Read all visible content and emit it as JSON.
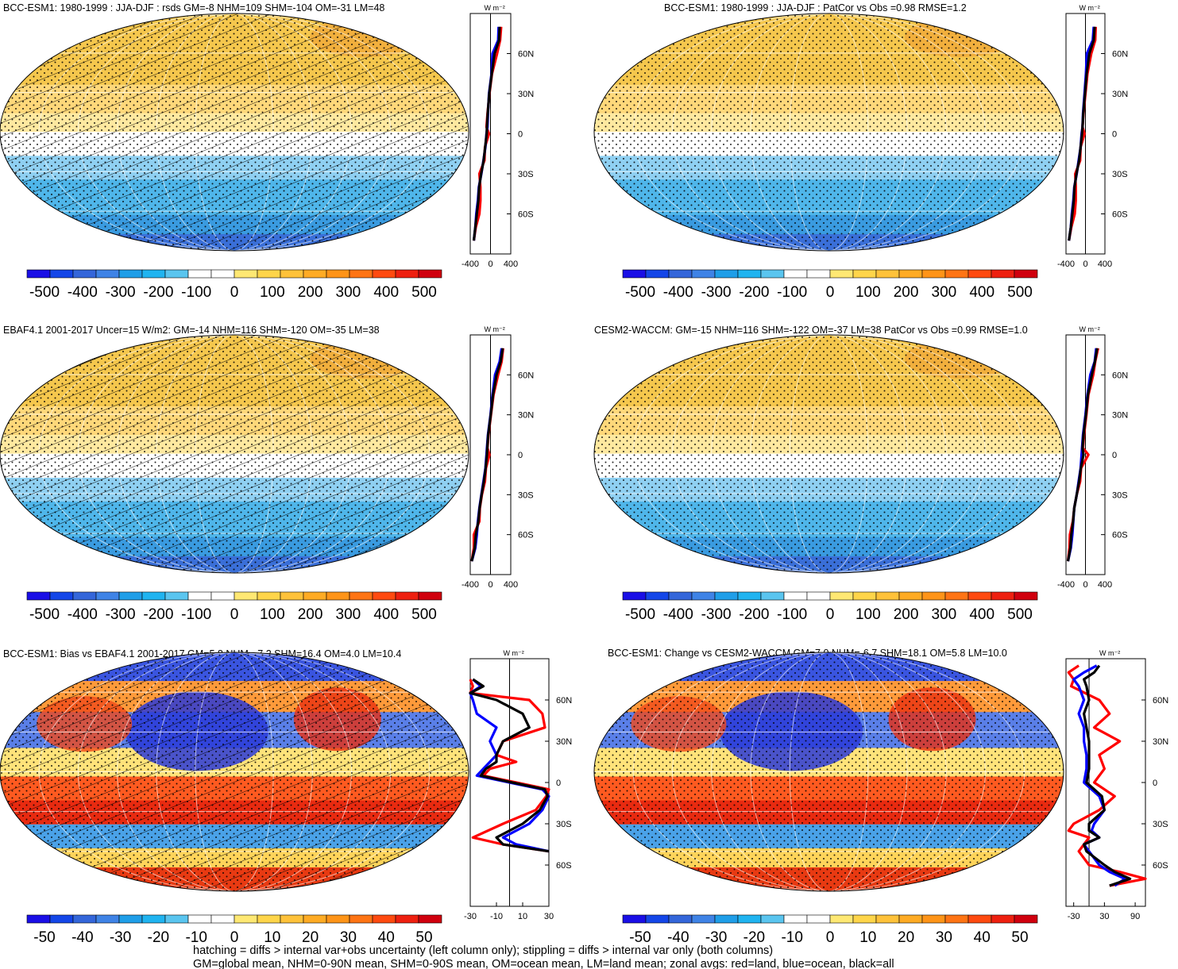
{
  "footer": {
    "line1": "hatching = diffs > internal var+obs uncertainty (left column only); stippling = diffs > internal var only (both columns)",
    "line2": "GM=global mean, NHM=0-90N mean, SHM=0-90S mean, OM=ocean mean, LM=land mean; zonal avgs: red=land, blue=ocean, black=all"
  },
  "chart_data": [
    {
      "type": "heatmap",
      "title": "BCC-ESM1: 1980-1999 : JJA-DJF : rsds GM=-8 NHM=109 SHM=-104 OM=-31 LM=48",
      "hatching": true,
      "stippling": true,
      "colorbar": {
        "levels": [
          "-500",
          "-400",
          "-300",
          "-200",
          "-100",
          "0",
          "100",
          "200",
          "300",
          "400",
          "500"
        ]
      },
      "zonal_profile": {
        "unit_label": "W m⁻²",
        "x_ticks": [
          "-400",
          "0",
          "400"
        ],
        "xlim": [
          -400,
          400
        ],
        "lat_ticks": [
          "60N",
          "30N",
          "0",
          "30S",
          "60S"
        ],
        "series": [
          {
            "name": "land",
            "color": "#ff0000",
            "lat": [
              80,
              70,
              60,
              45,
              30,
              15,
              5,
              0,
              -10,
              -20,
              -30,
              -40,
              -50,
              -60,
              -70,
              -80
            ],
            "values": [
              210,
              190,
              130,
              30,
              -20,
              -60,
              -80,
              -30,
              -110,
              -120,
              -220,
              -200,
              -200,
              -220,
              -290,
              -330
            ]
          },
          {
            "name": "ocean",
            "color": "#0000ff",
            "lat": [
              80,
              70,
              60,
              45,
              30,
              15,
              5,
              0,
              -10,
              -20,
              -30,
              -40,
              -50,
              -60,
              -70,
              -80
            ],
            "values": [
              160,
              150,
              40,
              20,
              -30,
              -50,
              -60,
              -80,
              -100,
              -140,
              -180,
              -230,
              -250,
              -280,
              -300,
              -330
            ]
          },
          {
            "name": "all",
            "color": "#000000",
            "lat": [
              80,
              70,
              60,
              45,
              30,
              15,
              5,
              0,
              -10,
              -20,
              -30,
              -40,
              -50,
              -60,
              -70,
              -80
            ],
            "values": [
              180,
              170,
              80,
              25,
              -25,
              -55,
              -70,
              -75,
              -105,
              -135,
              -185,
              -225,
              -240,
              -270,
              -300,
              -330
            ]
          }
        ]
      }
    },
    {
      "type": "heatmap",
      "title": "BCC-ESM1: 1980-1999 : JJA-DJF : PatCor vs Obs =0.98 RMSE=1.2",
      "hatching": false,
      "stippling": true,
      "colorbar": {
        "levels": [
          "-500",
          "-400",
          "-300",
          "-200",
          "-100",
          "0",
          "100",
          "200",
          "300",
          "400",
          "500"
        ]
      },
      "zonal_profile": {
        "unit_label": "W m⁻²",
        "x_ticks": [
          "-400",
          "0",
          "400"
        ],
        "xlim": [
          -400,
          400
        ],
        "lat_ticks": [
          "60N",
          "30N",
          "0",
          "30S",
          "60S"
        ],
        "series": [
          {
            "name": "land",
            "color": "#ff0000",
            "lat": [
              80,
              70,
              60,
              45,
              30,
              15,
              5,
              0,
              -10,
              -20,
              -30,
              -40,
              -50,
              -60,
              -70,
              -80
            ],
            "values": [
              210,
              200,
              120,
              40,
              0,
              -40,
              -60,
              -20,
              -100,
              -110,
              -210,
              -200,
              -200,
              -220,
              -290,
              -340
            ]
          },
          {
            "name": "ocean",
            "color": "#0000ff",
            "lat": [
              80,
              70,
              60,
              45,
              30,
              15,
              5,
              0,
              -10,
              -20,
              -30,
              -40,
              -50,
              -60,
              -70,
              -80
            ],
            "values": [
              170,
              150,
              30,
              10,
              -20,
              -50,
              -60,
              -80,
              -100,
              -140,
              -180,
              -230,
              -250,
              -280,
              -300,
              -340
            ]
          },
          {
            "name": "all",
            "color": "#000000",
            "lat": [
              80,
              70,
              60,
              45,
              30,
              15,
              5,
              0,
              -10,
              -20,
              -30,
              -40,
              -50,
              -60,
              -70,
              -80
            ],
            "values": [
              190,
              170,
              80,
              25,
              -10,
              -45,
              -60,
              -70,
              -100,
              -130,
              -185,
              -225,
              -240,
              -270,
              -300,
              -340
            ]
          }
        ]
      }
    },
    {
      "type": "heatmap",
      "title": "EBAF4.1 2001-2017 Uncer=15 W/m2: GM=-14 NHM=116 SHM=-120 OM=-35 LM=38",
      "hatching": true,
      "stippling": true,
      "colorbar": {
        "levels": [
          "-500",
          "-400",
          "-300",
          "-200",
          "-100",
          "0",
          "100",
          "200",
          "300",
          "400",
          "500"
        ]
      },
      "zonal_profile": {
        "unit_label": "W m⁻²",
        "x_ticks": [
          "-400",
          "0",
          "400"
        ],
        "xlim": [
          -400,
          400
        ],
        "lat_ticks": [
          "60N",
          "30N",
          "0",
          "30S",
          "60S"
        ],
        "series": [
          {
            "name": "land",
            "color": "#ff0000",
            "lat": [
              80,
              70,
              60,
              45,
              30,
              15,
              5,
              0,
              -10,
              -20,
              -30,
              -40,
              -50,
              -60,
              -70,
              -80
            ],
            "values": [
              250,
              220,
              150,
              60,
              10,
              -40,
              -60,
              -20,
              -90,
              -110,
              -170,
              -210,
              -220,
              -330,
              -330,
              -370
            ]
          },
          {
            "name": "ocean",
            "color": "#0000ff",
            "lat": [
              80,
              70,
              60,
              45,
              30,
              15,
              5,
              0,
              -10,
              -20,
              -30,
              -40,
              -50,
              -60,
              -70,
              -80
            ],
            "values": [
              220,
              180,
              90,
              40,
              0,
              -50,
              -70,
              -80,
              -100,
              -140,
              -180,
              -220,
              -250,
              -270,
              -300,
              -370
            ]
          },
          {
            "name": "all",
            "color": "#000000",
            "lat": [
              80,
              70,
              60,
              45,
              30,
              15,
              5,
              0,
              -10,
              -20,
              -30,
              -40,
              -50,
              -60,
              -70,
              -80
            ],
            "values": [
              240,
              200,
              120,
              50,
              5,
              -45,
              -65,
              -70,
              -95,
              -130,
              -175,
              -215,
              -240,
              -290,
              -310,
              -370
            ]
          }
        ]
      }
    },
    {
      "type": "heatmap",
      "title": "CESM2-WACCM: GM=-15 NHM=116 SHM=-122 OM=-37 LM=38 PatCor vs Obs =0.99 RMSE=1.0",
      "hatching": false,
      "stippling": true,
      "colorbar": {
        "levels": [
          "-500",
          "-400",
          "-300",
          "-200",
          "-100",
          "0",
          "100",
          "200",
          "300",
          "400",
          "500"
        ]
      },
      "zonal_profile": {
        "unit_label": "W m⁻²",
        "x_ticks": [
          "-400",
          "0",
          "400"
        ],
        "xlim": [
          -400,
          400
        ],
        "lat_ticks": [
          "60N",
          "30N",
          "0",
          "30S",
          "60S"
        ],
        "series": [
          {
            "name": "land",
            "color": "#ff0000",
            "lat": [
              80,
              70,
              60,
              45,
              30,
              15,
              5,
              0,
              -10,
              -20,
              -30,
              -40,
              -50,
              -60,
              -70,
              -80
            ],
            "values": [
              260,
              200,
              160,
              60,
              20,
              -30,
              -50,
              60,
              -90,
              -110,
              -180,
              -230,
              -260,
              -320,
              -330,
              -360
            ]
          },
          {
            "name": "ocean",
            "color": "#0000ff",
            "lat": [
              80,
              70,
              60,
              45,
              30,
              15,
              5,
              0,
              -10,
              -20,
              -30,
              -40,
              -50,
              -60,
              -70,
              -80
            ],
            "values": [
              220,
              190,
              100,
              40,
              0,
              -50,
              -70,
              -80,
              -100,
              -140,
              -180,
              -230,
              -250,
              -270,
              -300,
              -360
            ]
          },
          {
            "name": "all",
            "color": "#000000",
            "lat": [
              80,
              70,
              60,
              45,
              30,
              15,
              5,
              0,
              -10,
              -20,
              -30,
              -40,
              -50,
              -60,
              -70,
              -80
            ],
            "values": [
              240,
              195,
              130,
              50,
              10,
              -40,
              -60,
              -40,
              -95,
              -130,
              -180,
              -230,
              -255,
              -290,
              -310,
              -360
            ]
          }
        ]
      }
    },
    {
      "type": "heatmap",
      "title": "BCC-ESM1: Bias vs EBAF4.1 2001-2017 GM=5.8 NHM=-7.2 SHM=16.4 OM=4.0 LM=10.4",
      "hatching": true,
      "stippling": true,
      "colorbar": {
        "levels": [
          "-50",
          "-40",
          "-30",
          "-20",
          "-10",
          "0",
          "10",
          "20",
          "30",
          "40",
          "50"
        ]
      },
      "zonal_profile": {
        "unit_label": "W m⁻²",
        "x_ticks": [
          "-30",
          "-10",
          "10",
          "30"
        ],
        "xlim": [
          -30,
          30
        ],
        "lat_ticks": [
          "60N",
          "30N",
          "0",
          "30S",
          "60S"
        ],
        "series": [
          {
            "name": "land",
            "color": "#ff0000",
            "lat": [
              75,
              70,
              65,
              60,
              50,
              40,
              30,
              20,
              15,
              10,
              5,
              0,
              -5,
              -10,
              -20,
              -30,
              -40,
              -45,
              -50
            ],
            "values": [
              -30,
              -28,
              -30,
              15,
              25,
              27,
              -5,
              -10,
              5,
              -15,
              -20,
              5,
              30,
              28,
              20,
              -5,
              -28,
              -5,
              30
            ]
          },
          {
            "name": "ocean",
            "color": "#0000ff",
            "lat": [
              75,
              70,
              65,
              60,
              50,
              40,
              30,
              20,
              15,
              10,
              5,
              0,
              -5,
              -10,
              -20,
              -30,
              -40,
              -45,
              -50
            ],
            "values": [
              -28,
              -22,
              -30,
              -28,
              -25,
              -10,
              -15,
              -10,
              -15,
              -20,
              -25,
              0,
              25,
              30,
              25,
              15,
              -5,
              5,
              30
            ]
          },
          {
            "name": "all",
            "color": "#000000",
            "lat": [
              75,
              70,
              65,
              60,
              50,
              40,
              30,
              20,
              15,
              10,
              5,
              0,
              -5,
              -10,
              -20,
              -30,
              -40,
              -45,
              -50
            ],
            "values": [
              -28,
              -20,
              -30,
              -10,
              10,
              15,
              -5,
              -10,
              -10,
              -18,
              -22,
              2,
              27,
              29,
              23,
              10,
              -10,
              -5,
              30
            ]
          }
        ]
      }
    },
    {
      "type": "heatmap",
      "title": "BCC-ESM1: Change vs CESM2-WACCM GM=7.0 NHM=-6.7 SHM=18.1 OM=5.8 LM=10.0",
      "hatching": false,
      "stippling": true,
      "colorbar": {
        "levels": [
          "-50",
          "-40",
          "-30",
          "-20",
          "-10",
          "0",
          "10",
          "20",
          "30",
          "40",
          "50"
        ]
      },
      "zonal_profile": {
        "unit_label": "W m⁻²",
        "x_ticks": [
          "-30",
          "30",
          "90"
        ],
        "xlim": [
          -45,
          110
        ],
        "lat_ticks": [
          "60N",
          "30N",
          "0",
          "30S",
          "60S"
        ],
        "series": [
          {
            "name": "land",
            "color": "#ff0000",
            "lat": [
              85,
              80,
              75,
              70,
              60,
              50,
              40,
              30,
              20,
              10,
              0,
              -10,
              -20,
              -30,
              -35,
              -40,
              -45,
              -50,
              -60,
              -65,
              -70,
              -75
            ],
            "values": [
              -20,
              -40,
              -30,
              -35,
              20,
              40,
              10,
              60,
              20,
              30,
              10,
              50,
              20,
              -30,
              -40,
              0,
              -10,
              -20,
              0,
              60,
              110,
              40
            ]
          },
          {
            "name": "ocean",
            "color": "#0000ff",
            "lat": [
              85,
              80,
              75,
              70,
              60,
              50,
              40,
              30,
              20,
              10,
              0,
              -10,
              -20,
              -30,
              -35,
              -40,
              -45,
              -50,
              -60,
              -65,
              -70,
              -75
            ],
            "values": [
              15,
              -10,
              -30,
              -20,
              -10,
              -20,
              -10,
              -10,
              -5,
              -5,
              -10,
              20,
              30,
              10,
              5,
              20,
              -10,
              0,
              20,
              40,
              70,
              50
            ]
          },
          {
            "name": "all",
            "color": "#000000",
            "lat": [
              85,
              80,
              75,
              70,
              60,
              50,
              40,
              30,
              20,
              10,
              0,
              -10,
              -20,
              -30,
              -35,
              -40,
              -45,
              -50,
              -60,
              -65,
              -70,
              -75
            ],
            "values": [
              20,
              10,
              -10,
              -5,
              0,
              -10,
              -5,
              0,
              0,
              0,
              -5,
              25,
              30,
              0,
              0,
              20,
              -10,
              -5,
              30,
              50,
              80,
              40
            ]
          }
        ]
      }
    }
  ]
}
